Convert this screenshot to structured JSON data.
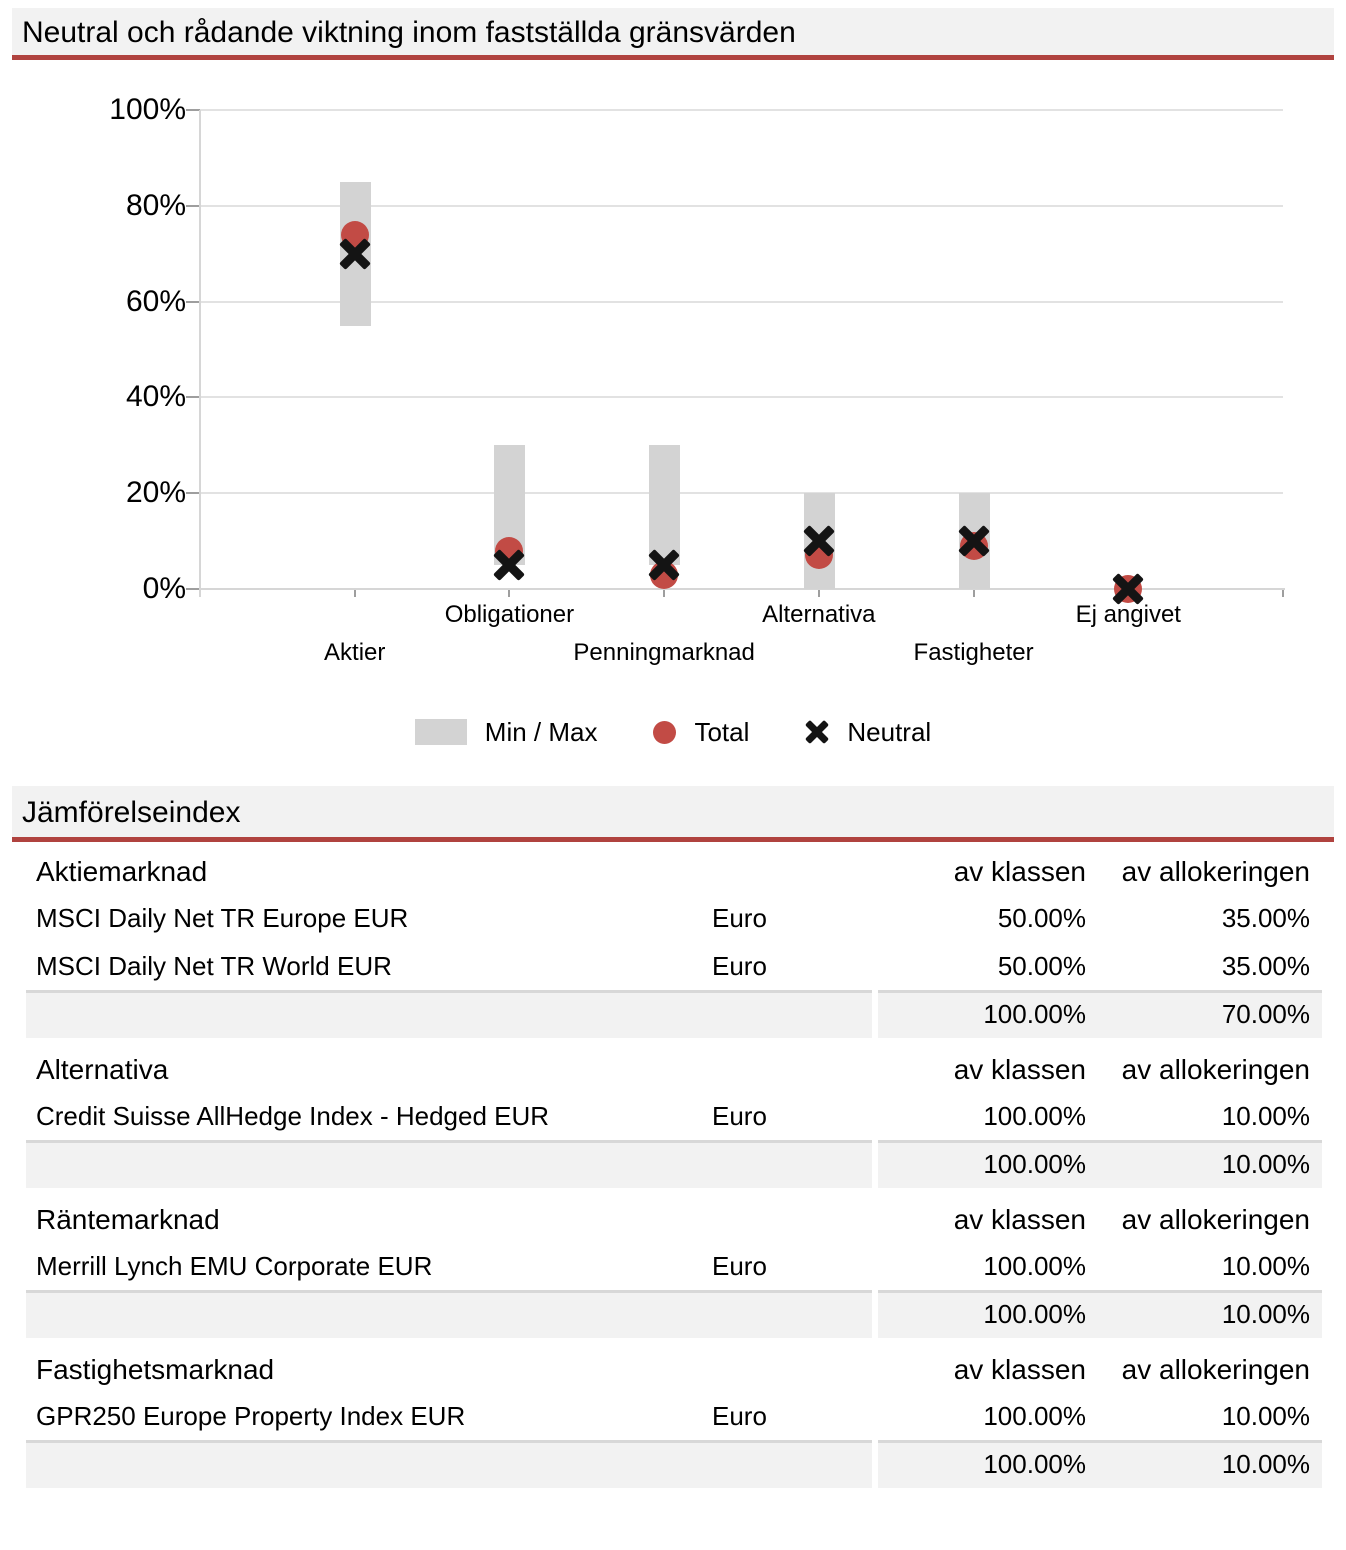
{
  "colors": {
    "accent_red": "#b0433f",
    "header_band_bg": "#f2f2f2",
    "minmax_bar_gray": "#d3d3d3",
    "total_dot_red": "#c24b45",
    "gridline_gray": "#e2e2e2",
    "axis_gray": "#d6d6d6",
    "tick_gray": "#9e9e9e",
    "neutral_marker_black": "#141414",
    "total_row_top_border": "#d8d8d8"
  },
  "chart_data": {
    "type": "range_bar",
    "title": "Neutral och rådande viktning inom fastställda gränsvärden",
    "categories": [
      "Aktier",
      "Obligationer",
      "Penningmarknad",
      "Alternativa",
      "Fastigheter",
      "Ej angivet"
    ],
    "series": [
      {
        "name": "Min / Max",
        "type": "range",
        "swatch": "gray-rect",
        "min": [
          55,
          5,
          5,
          0,
          0,
          0
        ],
        "max": [
          85,
          30,
          30,
          20,
          20,
          0
        ]
      },
      {
        "name": "Total",
        "type": "point",
        "marker": "circle",
        "color": "#c24b45",
        "values": [
          74,
          8,
          3,
          7,
          9,
          0
        ]
      },
      {
        "name": "Neutral",
        "type": "point",
        "marker": "x",
        "color": "#141414",
        "values": [
          70,
          5,
          5,
          10,
          10,
          0
        ]
      }
    ],
    "ylim": [
      0,
      100
    ],
    "yticks": [
      0,
      20,
      40,
      60,
      80,
      100
    ],
    "ytick_labels": [
      "0%",
      "20%",
      "40%",
      "60%",
      "80%",
      "100%"
    ],
    "grid": true,
    "legend_position": "bottom"
  },
  "table": {
    "title": "Jämförelseindex",
    "col_headers": {
      "of_class": "av klassen",
      "of_allocation": "av allokeringen"
    },
    "sections": [
      {
        "name": "Aktiemarknad",
        "rows": [
          {
            "index": "MSCI Daily Net TR Europe EUR",
            "currency": "Euro",
            "of_class": "50.00%",
            "of_allocation": "35.00%"
          },
          {
            "index": "MSCI Daily Net TR World EUR",
            "currency": "Euro",
            "of_class": "50.00%",
            "of_allocation": "35.00%"
          }
        ],
        "total": {
          "of_class": "100.00%",
          "of_allocation": "70.00%"
        }
      },
      {
        "name": "Alternativa",
        "rows": [
          {
            "index": "Credit Suisse AllHedge Index - Hedged EUR",
            "currency": "Euro",
            "of_class": "100.00%",
            "of_allocation": "10.00%"
          }
        ],
        "total": {
          "of_class": "100.00%",
          "of_allocation": "10.00%"
        }
      },
      {
        "name": "Räntemarknad",
        "rows": [
          {
            "index": "Merrill Lynch EMU Corporate EUR",
            "currency": "Euro",
            "of_class": "100.00%",
            "of_allocation": "10.00%"
          }
        ],
        "total": {
          "of_class": "100.00%",
          "of_allocation": "10.00%"
        }
      },
      {
        "name": "Fastighetsmarknad",
        "rows": [
          {
            "index": "GPR250 Europe Property Index EUR",
            "currency": "Euro",
            "of_class": "100.00%",
            "of_allocation": "10.00%"
          }
        ],
        "total": {
          "of_class": "100.00%",
          "of_allocation": "10.00%"
        }
      }
    ]
  }
}
